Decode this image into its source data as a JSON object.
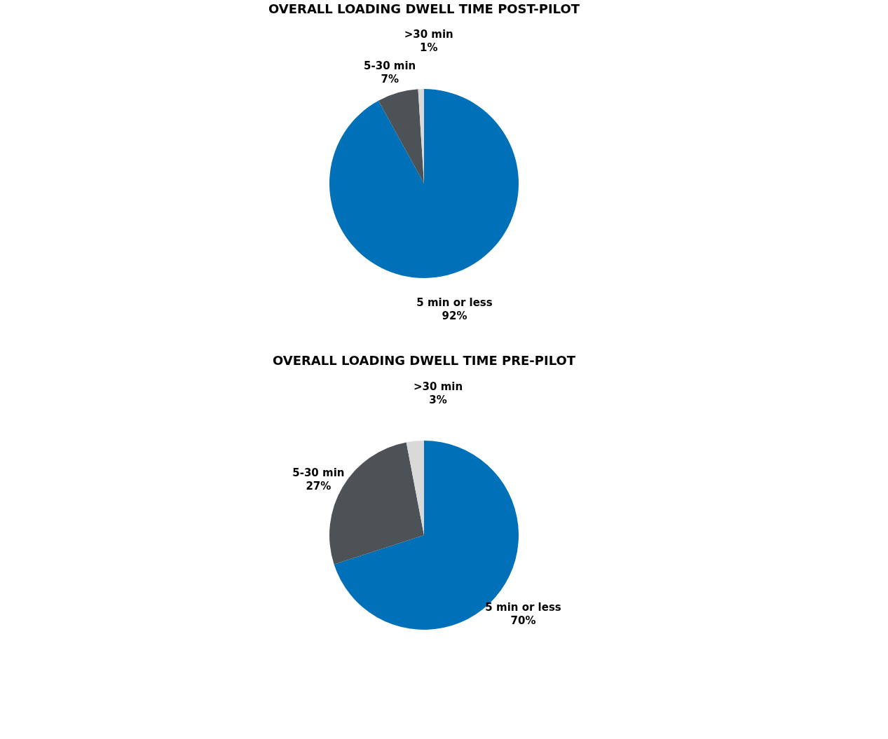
{
  "chart_data": [
    {
      "type": "pie",
      "title": "OVERALL LOADING DWELL TIME POST-PILOT",
      "categories": [
        "5 min or less",
        "5-30 min",
        ">30 min"
      ],
      "values": [
        92,
        7,
        1
      ],
      "colors": [
        "#0070b8",
        "#4d5256",
        "#d9d9d9"
      ],
      "value_labels": [
        "92%",
        "7%",
        "1%"
      ],
      "legend": false
    },
    {
      "type": "pie",
      "title": "OVERALL LOADING DWELL TIME PRE-PILOT",
      "categories": [
        "5 min or less",
        "5-30 min",
        ">30 min"
      ],
      "values": [
        70,
        27,
        3
      ],
      "colors": [
        "#0070b8",
        "#4d5256",
        "#d9d9d9"
      ],
      "value_labels": [
        "70%",
        "27%",
        "3%"
      ],
      "legend": false
    }
  ]
}
